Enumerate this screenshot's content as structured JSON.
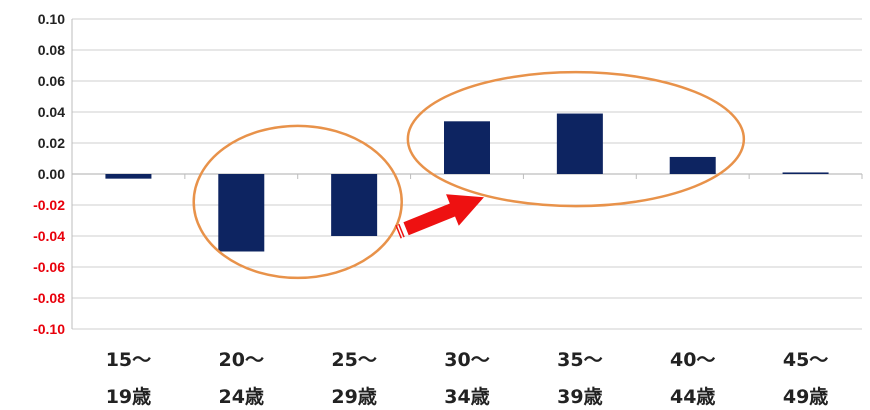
{
  "chart_data": {
    "type": "bar",
    "categories": [
      [
        "15～",
        "19歳"
      ],
      [
        "20～",
        "24歳"
      ],
      [
        "25～",
        "29歳"
      ],
      [
        "30～",
        "34歳"
      ],
      [
        "35～",
        "39歳"
      ],
      [
        "40～",
        "44歳"
      ],
      [
        "45～",
        "49歳"
      ]
    ],
    "values": [
      -0.003,
      -0.05,
      -0.04,
      0.034,
      0.039,
      0.011,
      0.001
    ],
    "ylim": [
      -0.1,
      0.1
    ],
    "yticks": [
      "0.10",
      "0.08",
      "0.06",
      "0.04",
      "0.02",
      "0.00",
      "-0.02",
      "-0.04",
      "-0.06",
      "-0.08",
      "-0.10"
    ],
    "grid": true,
    "legend": "none",
    "title": "",
    "xlabel": "",
    "ylabel": "",
    "colors": {
      "bar": "#0d2461",
      "positive_tick": "#222222",
      "negative_tick": "#e8000b",
      "grid": "#cfcfcf",
      "axis": "#bdbdbd",
      "highlight_ellipse": "#e8924a",
      "arrow": "#ee1111"
    },
    "annotations": [
      {
        "type": "ellipse",
        "encloses": [
          "20～24歳",
          "25～29歳"
        ]
      },
      {
        "type": "ellipse",
        "encloses": [
          "30～34歳",
          "35～39歳",
          "40～44歳"
        ]
      },
      {
        "type": "arrow",
        "from": "25～29歳",
        "to": "30～34歳",
        "shape": "block-arrow-right"
      }
    ]
  }
}
